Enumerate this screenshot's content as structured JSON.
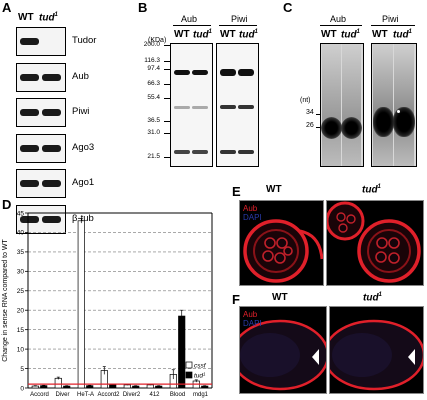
{
  "panelA": {
    "letter": "A",
    "wt": "WT",
    "mut": "tud",
    "mut_sup": "1",
    "rows": [
      "Tudor",
      "Aub",
      "Piwi",
      "Ago3",
      "Ago1",
      "β-tub"
    ]
  },
  "panelB": {
    "letter": "B",
    "unit": "(KDa)",
    "col1": "Aub",
    "col2": "Piwi",
    "wt": "WT",
    "mut": "tud",
    "mut_sup": "1",
    "markers": [
      "200.0",
      "116.3",
      "97.4",
      "66.3",
      "55.4",
      "36.5",
      "31.0",
      "21.5"
    ]
  },
  "panelC": {
    "letter": "C",
    "col1": "Aub",
    "col2": "Piwi",
    "wt": "WT",
    "mut": "tud",
    "mut_sup": "1",
    "unit": "(nt)",
    "markers": [
      "34",
      "26"
    ]
  },
  "panelD": {
    "letter": "D",
    "chart_data": {
      "type": "bar",
      "categories": [
        "Accord",
        "Diver",
        "HeT-A",
        "Accord2",
        "Diver2",
        "412",
        "Blood",
        "mdg1"
      ],
      "series": [
        {
          "name": "cssf",
          "values": [
            0.5,
            2.5,
            43,
            4.5,
            0.8,
            0.8,
            3.5,
            1.8
          ],
          "errors": [
            0.1,
            0.3,
            0.6,
            1.0,
            0.1,
            0.1,
            1.2,
            0.3
          ],
          "color": "#ffffff"
        },
        {
          "name": "tud",
          "name_sup": "1",
          "values": [
            0.6,
            0.5,
            0.6,
            0.8,
            0.5,
            0.5,
            18.5,
            0.5
          ],
          "errors": [
            0.1,
            0.1,
            0.1,
            0.1,
            0.1,
            0.1,
            1.5,
            0.1
          ],
          "color": "#000000"
        }
      ],
      "ylabel": "Change in sense RNA compared to WT",
      "ylim": [
        0,
        45
      ],
      "yticks": [
        0,
        5,
        10,
        15,
        20,
        25,
        30,
        35,
        40,
        45
      ],
      "reference_line": 1,
      "grid": "dashed horizontal",
      "legend": "bottom-right"
    }
  },
  "panelE": {
    "letter": "E",
    "wt": "WT",
    "mut": "tud",
    "mut_sup": "1",
    "ch1": "Aub",
    "ch2": "DAPI"
  },
  "panelF": {
    "letter": "F",
    "wt": "WT",
    "mut": "tud",
    "mut_sup": "1",
    "ch1": "Aub",
    "ch2": "DAPI"
  },
  "colors": {
    "aub_red": "#e0202a",
    "dapi_blue": "#2a3aa8",
    "reference_red": "#e0202a"
  }
}
